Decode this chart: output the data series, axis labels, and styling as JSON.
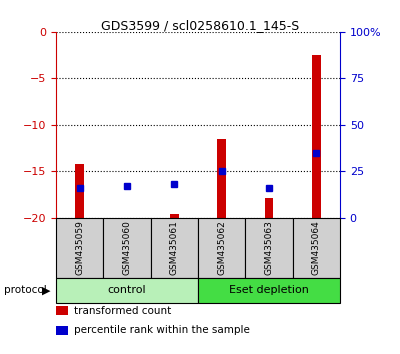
{
  "title": "GDS3599 / scl0258610.1_145-S",
  "samples": [
    "GSM435059",
    "GSM435060",
    "GSM435061",
    "GSM435062",
    "GSM435063",
    "GSM435064"
  ],
  "red_values": [
    -14.2,
    -20.1,
    -19.6,
    -11.5,
    -17.9,
    -2.5
  ],
  "blue_values_pct": [
    16,
    17,
    18,
    25,
    16,
    35
  ],
  "ylim_left": [
    -20,
    0
  ],
  "ylim_right": [
    0,
    100
  ],
  "yticks_left": [
    0,
    -5,
    -10,
    -15,
    -20
  ],
  "yticks_right": [
    0,
    25,
    50,
    75,
    100
  ],
  "groups": [
    {
      "label": "control",
      "start": 0,
      "end": 2,
      "color": "#b8f0b8"
    },
    {
      "label": "Eset depletion",
      "start": 3,
      "end": 5,
      "color": "#44dd44"
    }
  ],
  "protocol_label": "protocol",
  "bar_color": "#cc0000",
  "dot_color": "#0000cc",
  "legend_bar_label": "transformed count",
  "legend_dot_label": "percentile rank within the sample",
  "background_color": "#ffffff",
  "plot_bg_color": "#ffffff",
  "left_axis_color": "#cc0000",
  "right_axis_color": "#0000cc",
  "grid_color": "#000000",
  "sample_box_color": "#d0d0d0",
  "bar_width": 0.18
}
